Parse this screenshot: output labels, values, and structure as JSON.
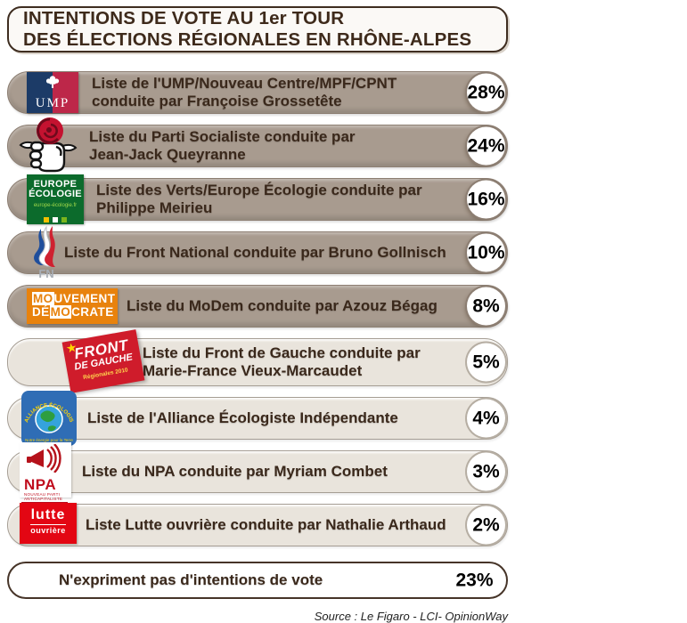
{
  "title": {
    "line1": "INTENTIONS DE VOTE AU 1er TOUR",
    "line2": "DES ÉLECTIONS RÉGIONALES EN RHÔNE-ALPES"
  },
  "source": "Source : Le Figaro - LCI- OpinionWay",
  "colors": {
    "bar_dark": "#a89b8f",
    "bar_light": "#e9e4dc",
    "bar_none": "#ffffff",
    "title_border": "#3e2d20",
    "label_text": "#3a281b",
    "value_text": "#000000"
  },
  "rows": [
    {
      "party": "ump",
      "style": "dark",
      "logo": "ump-logo",
      "label_lines": [
        "Liste de l'UMP/Nouveau Centre/MPF/CPNT",
        "conduite par Françoise Grossetête"
      ],
      "value": "28%"
    },
    {
      "party": "ps",
      "style": "dark",
      "logo": "ps-rose-logo",
      "label_lines": [
        "Liste du Parti Socialiste conduite par",
        "Jean-Jack Queyranne"
      ],
      "value": "24%"
    },
    {
      "party": "ee",
      "style": "dark",
      "logo": "europe-ecologie-logo",
      "label_lines": [
        "Liste des Verts/Europe Écologie conduite par",
        "Philippe Meirieu"
      ],
      "value": "16%"
    },
    {
      "party": "fn",
      "style": "dark",
      "logo": "front-national-logo",
      "label_lines": [
        "Liste du Front National conduite par Bruno Gollnisch"
      ],
      "value": "10%"
    },
    {
      "party": "modem",
      "style": "dark",
      "logo": "modem-logo",
      "label_lines": [
        "Liste du MoDem conduite par Azouz Bégag"
      ],
      "value": "8%"
    },
    {
      "party": "fdg",
      "style": "light",
      "logo": "front-de-gauche-logo",
      "label_lines": [
        "Liste du Front de Gauche conduite par",
        "Marie-France Vieux-Marcaudet"
      ],
      "value": "5%"
    },
    {
      "party": "aei",
      "style": "light",
      "logo": "alliance-ecologiste-logo",
      "label_lines": [
        "Liste de l'Alliance Écologiste Indépendante"
      ],
      "value": "4%"
    },
    {
      "party": "npa",
      "style": "light",
      "logo": "npa-logo",
      "label_lines": [
        "Liste du NPA conduite par Myriam Combet"
      ],
      "value": "3%"
    },
    {
      "party": "lo",
      "style": "light",
      "logo": "lutte-ouvriere-logo",
      "label_lines": [
        "Liste Lutte ouvrière conduite par Nathalie Arthaud"
      ],
      "value": "2%"
    },
    {
      "party": "none",
      "style": "none",
      "logo": null,
      "label_lines": [
        "N'expriment pas d'intentions de vote"
      ],
      "value": "23%"
    }
  ],
  "chart_data": {
    "type": "bar",
    "orientation": "horizontal",
    "title": "INTENTIONS DE VOTE AU 1er TOUR DES ÉLECTIONS RÉGIONALES EN RHÔNE-ALPES",
    "categories": [
      "Liste de l'UMP/Nouveau Centre/MPF/CPNT conduite par Françoise Grossetête",
      "Liste du Parti Socialiste conduite par Jean-Jack Queyranne",
      "Liste des Verts/Europe Écologie conduite par Philippe Meirieu",
      "Liste du Front National conduite par Bruno Gollnisch",
      "Liste du MoDem conduite par Azouz Bégag",
      "Liste du Front de Gauche conduite par Marie-France Vieux-Marcaudet",
      "Liste de l'Alliance Écologiste Indépendante",
      "Liste du NPA conduite par Myriam Combet",
      "Liste Lutte ouvrière conduite par Nathalie Arthaud",
      "N'expriment pas d'intentions de vote"
    ],
    "values": [
      28,
      24,
      16,
      10,
      8,
      5,
      4,
      3,
      2,
      23
    ],
    "unit": "%",
    "xlabel": "",
    "ylabel": "",
    "legend": false,
    "grid": false,
    "source": "Source : Le Figaro - LCI- OpinionWay"
  }
}
